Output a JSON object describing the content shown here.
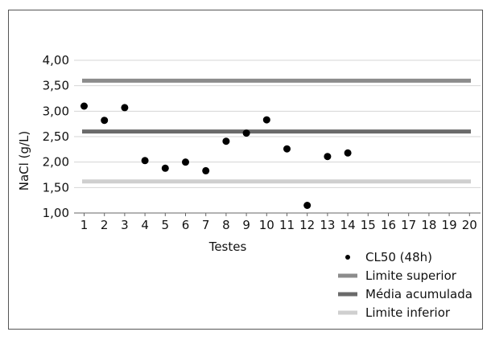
{
  "chart_data": {
    "type": "scatter",
    "xlabel": "Testes",
    "ylabel": "NaCl (g/L)",
    "ylim": [
      1.0,
      4.0
    ],
    "yticks": [
      "1,00",
      "1,50",
      "2,00",
      "2,50",
      "3,00",
      "3,50",
      "4,00"
    ],
    "xticks": [
      "1",
      "2",
      "3",
      "4",
      "5",
      "6",
      "7",
      "8",
      "9",
      "10",
      "11",
      "12",
      "13",
      "14",
      "15",
      "16",
      "17",
      "18",
      "19",
      "20"
    ],
    "grid": true,
    "legend_position": "bottom-right",
    "series": [
      {
        "name": "CL50 (48h)",
        "kind": "points",
        "color": "#000000",
        "x": [
          1,
          2,
          3,
          4,
          5,
          6,
          7,
          8,
          9,
          10,
          11,
          12,
          13,
          14
        ],
        "y": [
          3.1,
          2.82,
          3.07,
          2.03,
          1.88,
          2.0,
          1.83,
          2.41,
          2.57,
          2.83,
          2.26,
          1.15,
          2.11,
          2.18
        ]
      },
      {
        "name": "Limite superior",
        "kind": "hline",
        "color": "#8c8c8c",
        "y": 3.6
      },
      {
        "name": "Média acumulada",
        "kind": "hline",
        "color": "#6a6a6a",
        "y": 2.6
      },
      {
        "name": "Limite inferior",
        "kind": "hline",
        "color": "#cfcfcf",
        "y": 1.62
      }
    ]
  }
}
